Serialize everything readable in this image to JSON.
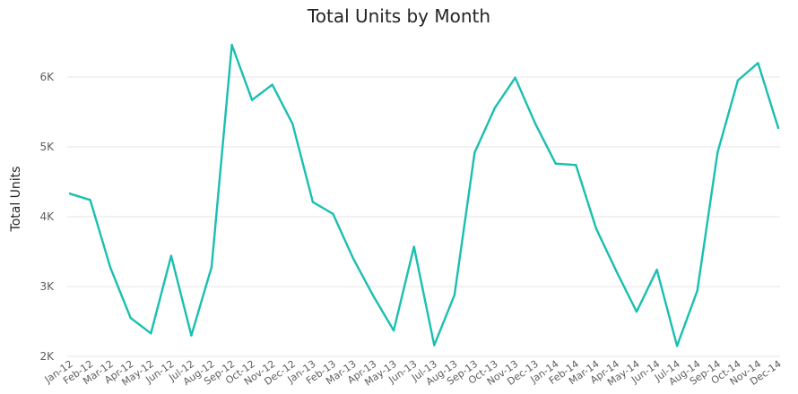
{
  "chart_data": {
    "type": "line",
    "title": "Total Units by Month",
    "xlabel": "",
    "ylabel": "Total Units",
    "ylim": [
      2000,
      6600
    ],
    "y_ticks": [
      {
        "value": 2000,
        "label": "2K"
      },
      {
        "value": 3000,
        "label": "3K"
      },
      {
        "value": 4000,
        "label": "4K"
      },
      {
        "value": 5000,
        "label": "5K"
      },
      {
        "value": 6000,
        "label": "6K"
      }
    ],
    "grid": true,
    "categories": [
      "Jan-12",
      "Feb-12",
      "Mar-12",
      "Apr-12",
      "May-12",
      "Jun-12",
      "Jul-12",
      "Aug-12",
      "Sep-12",
      "Oct-12",
      "Nov-12",
      "Dec-12",
      "Jan-13",
      "Feb-13",
      "Mar-13",
      "Apr-13",
      "May-13",
      "Jun-13",
      "Jul-13",
      "Aug-13",
      "Sep-13",
      "Oct-13",
      "Nov-13",
      "Dec-13",
      "Jan-14",
      "Feb-14",
      "Mar-14",
      "Apr-14",
      "May-14",
      "Jun-14",
      "Jul-14",
      "Aug-14",
      "Sep-14",
      "Oct-14",
      "Nov-14",
      "Dec-14"
    ],
    "series": [
      {
        "values": [
          4330,
          4240,
          3270,
          2550,
          2330,
          3440,
          2300,
          3280,
          6460,
          5670,
          5890,
          5330,
          4210,
          4040,
          3400,
          2860,
          2370,
          3570,
          2160,
          2880,
          4920,
          5560,
          5990,
          5330,
          4760,
          4740,
          3830,
          3220,
          2640,
          3240,
          2150,
          2940,
          4920,
          5950,
          6200,
          5270
        ]
      }
    ],
    "colors": {
      "line": "#1ABFB0",
      "grid": "#E6E6E6",
      "text": "#605E5C",
      "title": "#252423"
    }
  }
}
